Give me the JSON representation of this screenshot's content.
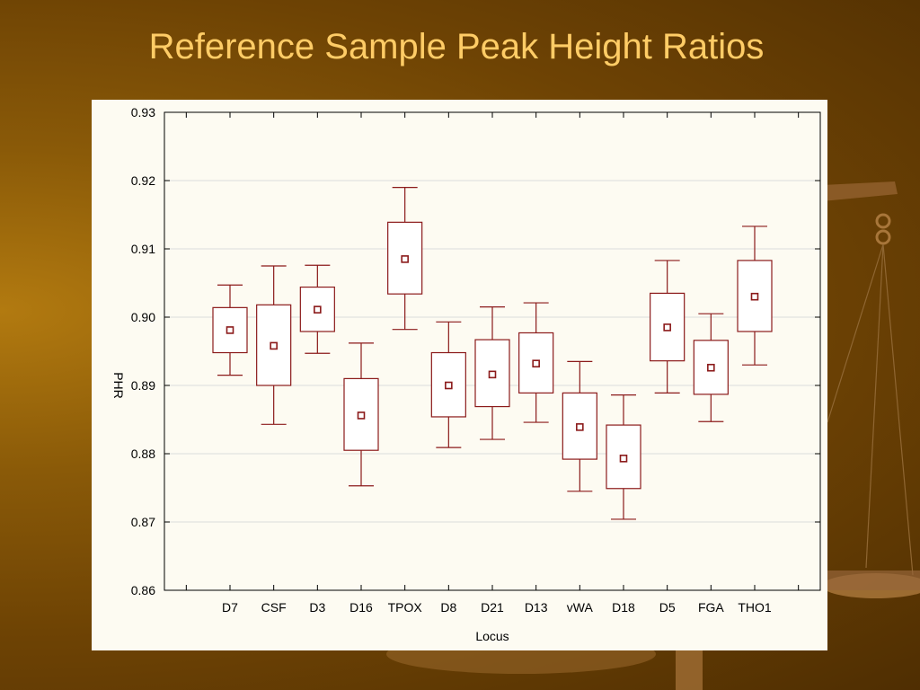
{
  "slide": {
    "title": "Reference Sample Peak Height Ratios"
  },
  "colors": {
    "background": "#6e4304",
    "title": "#ffcc66",
    "panel": "#fdfbf2",
    "box_stroke": "#8b1a1a"
  },
  "chart_data": {
    "type": "box",
    "title": "",
    "xlabel": "Locus",
    "ylabel": "PHR",
    "ylim": [
      0.86,
      0.93
    ],
    "yticks": [
      "0.86",
      "0.87",
      "0.88",
      "0.89",
      "0.90",
      "0.91",
      "0.92",
      "0.93"
    ],
    "grid": true,
    "categories": [
      "D7",
      "CSF",
      "D3",
      "D16",
      "TPOX",
      "D8",
      "D21",
      "D13",
      "vWA",
      "D18",
      "D5",
      "FGA",
      "THO1"
    ],
    "boxes": [
      {
        "locus": "D7",
        "whisker_low": 0.8915,
        "box_low": 0.8948,
        "mean": 0.8981,
        "box_high": 0.9014,
        "whisker_high": 0.9047
      },
      {
        "locus": "CSF",
        "whisker_low": 0.8843,
        "box_low": 0.89,
        "mean": 0.8958,
        "box_high": 0.9018,
        "whisker_high": 0.9075
      },
      {
        "locus": "D3",
        "whisker_low": 0.8947,
        "box_low": 0.8979,
        "mean": 0.9011,
        "box_high": 0.9044,
        "whisker_high": 0.9076
      },
      {
        "locus": "D16",
        "whisker_low": 0.8753,
        "box_low": 0.8805,
        "mean": 0.8856,
        "box_high": 0.891,
        "whisker_high": 0.8962
      },
      {
        "locus": "TPOX",
        "whisker_low": 0.8982,
        "box_low": 0.9034,
        "mean": 0.9085,
        "box_high": 0.9139,
        "whisker_high": 0.919
      },
      {
        "locus": "D8",
        "whisker_low": 0.8809,
        "box_low": 0.8854,
        "mean": 0.89,
        "box_high": 0.8948,
        "whisker_high": 0.8993
      },
      {
        "locus": "D21",
        "whisker_low": 0.8821,
        "box_low": 0.8869,
        "mean": 0.8916,
        "box_high": 0.8967,
        "whisker_high": 0.9015
      },
      {
        "locus": "D13",
        "whisker_low": 0.8846,
        "box_low": 0.8889,
        "mean": 0.8932,
        "box_high": 0.8977,
        "whisker_high": 0.9021
      },
      {
        "locus": "vWA",
        "whisker_low": 0.8745,
        "box_low": 0.8792,
        "mean": 0.8839,
        "box_high": 0.8889,
        "whisker_high": 0.8935
      },
      {
        "locus": "D18",
        "whisker_low": 0.8704,
        "box_low": 0.8749,
        "mean": 0.8793,
        "box_high": 0.8842,
        "whisker_high": 0.8886
      },
      {
        "locus": "D5",
        "whisker_low": 0.8889,
        "box_low": 0.8936,
        "mean": 0.8985,
        "box_high": 0.9035,
        "whisker_high": 0.9083
      },
      {
        "locus": "FGA",
        "whisker_low": 0.8847,
        "box_low": 0.8887,
        "mean": 0.8926,
        "box_high": 0.8966,
        "whisker_high": 0.9005
      },
      {
        "locus": "THO1",
        "whisker_low": 0.893,
        "box_low": 0.8979,
        "mean": 0.903,
        "box_high": 0.9083,
        "whisker_high": 0.9133
      }
    ]
  }
}
